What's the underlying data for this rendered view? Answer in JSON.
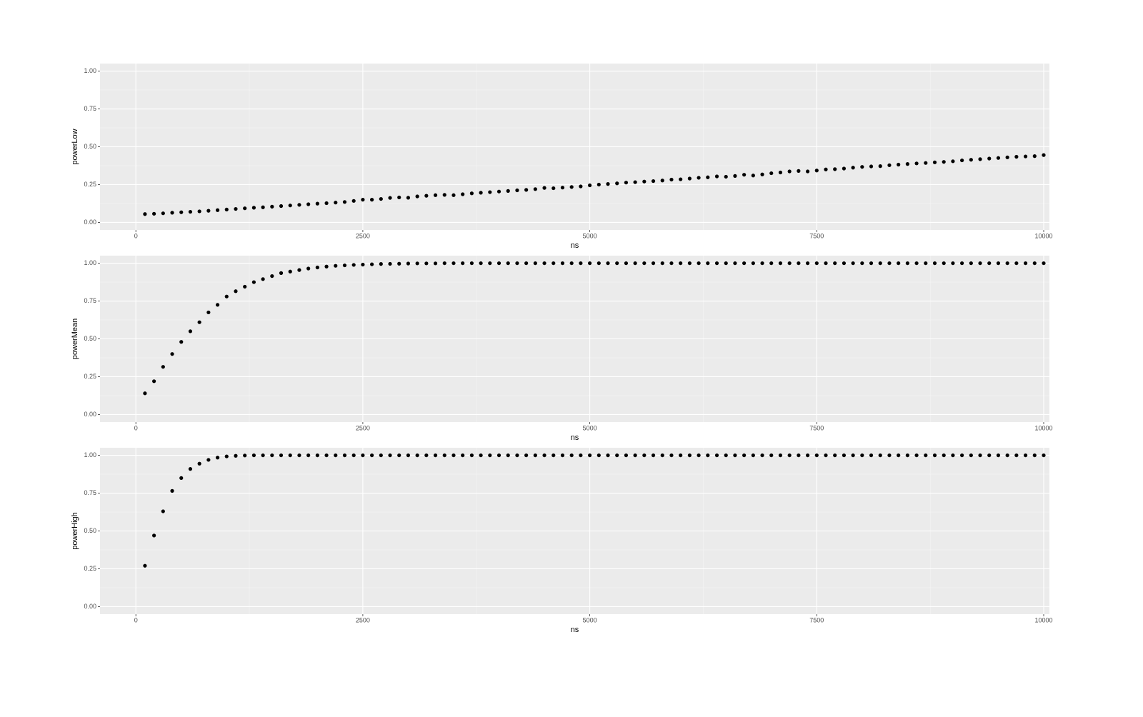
{
  "chart_data": [
    {
      "type": "scatter",
      "x_label": "ns",
      "y_label": "powerLow",
      "x": [
        100,
        200,
        300,
        400,
        500,
        600,
        700,
        800,
        900,
        1000,
        1100,
        1200,
        1300,
        1400,
        1500,
        1600,
        1700,
        1800,
        1900,
        2000,
        2100,
        2200,
        2300,
        2400,
        2500,
        2600,
        2700,
        2800,
        2900,
        3000,
        3100,
        3200,
        3300,
        3400,
        3500,
        3600,
        3700,
        3800,
        3900,
        4000,
        4100,
        4200,
        4300,
        4400,
        4500,
        4600,
        4700,
        4800,
        4900,
        5000,
        5100,
        5200,
        5300,
        5400,
        5500,
        5600,
        5700,
        5800,
        5900,
        6000,
        6100,
        6200,
        6300,
        6400,
        6500,
        6600,
        6700,
        6800,
        6900,
        7000,
        7100,
        7200,
        7300,
        7400,
        7500,
        7600,
        7700,
        7800,
        7900,
        8000,
        8100,
        8200,
        8300,
        8400,
        8500,
        8600,
        8700,
        8800,
        8900,
        9000,
        9100,
        9200,
        9300,
        9400,
        9500,
        9600,
        9700,
        9800,
        9900,
        10000
      ],
      "values": [
        0.055,
        0.057,
        0.06,
        0.064,
        0.067,
        0.07,
        0.073,
        0.077,
        0.081,
        0.085,
        0.089,
        0.093,
        0.097,
        0.1,
        0.104,
        0.108,
        0.112,
        0.116,
        0.12,
        0.124,
        0.127,
        0.131,
        0.135,
        0.142,
        0.15,
        0.15,
        0.155,
        0.162,
        0.165,
        0.163,
        0.172,
        0.176,
        0.18,
        0.182,
        0.18,
        0.186,
        0.192,
        0.196,
        0.2,
        0.204,
        0.208,
        0.212,
        0.215,
        0.22,
        0.228,
        0.226,
        0.23,
        0.234,
        0.238,
        0.245,
        0.25,
        0.254,
        0.258,
        0.263,
        0.266,
        0.27,
        0.273,
        0.277,
        0.283,
        0.285,
        0.29,
        0.295,
        0.298,
        0.304,
        0.302,
        0.307,
        0.315,
        0.31,
        0.317,
        0.325,
        0.33,
        0.337,
        0.34,
        0.337,
        0.343,
        0.35,
        0.352,
        0.356,
        0.362,
        0.367,
        0.37,
        0.372,
        0.378,
        0.382,
        0.386,
        0.39,
        0.393,
        0.397,
        0.4,
        0.404,
        0.41,
        0.414,
        0.418,
        0.422,
        0.426,
        0.43,
        0.434,
        0.436,
        0.438,
        0.445
      ],
      "color": "#000000",
      "xlim": [
        -395,
        10063
      ],
      "ylim": [
        -0.05,
        1.05
      ],
      "xticks": [
        0,
        2500,
        5000,
        7500,
        10000
      ],
      "yticks": [
        {
          "value": 0,
          "label": "0.00"
        },
        0.25,
        {
          "value": 0.5,
          "label": "0.50"
        },
        0.75,
        {
          "value": 1,
          "label": "1.00"
        }
      ],
      "grid": true
    },
    {
      "type": "scatter",
      "x_label": "ns",
      "y_label": "powerMean",
      "x": [
        100,
        200,
        300,
        400,
        500,
        600,
        700,
        800,
        900,
        1000,
        1100,
        1200,
        1300,
        1400,
        1500,
        1600,
        1700,
        1800,
        1900,
        2000,
        2100,
        2200,
        2300,
        2400,
        2500,
        2600,
        2700,
        2800,
        2900,
        3000,
        3100,
        3200,
        3300,
        3400,
        3500,
        3600,
        3700,
        3800,
        3900,
        4000,
        4100,
        4200,
        4300,
        4400,
        4500,
        4600,
        4700,
        4800,
        4900,
        5000,
        5100,
        5200,
        5300,
        5400,
        5500,
        5600,
        5700,
        5800,
        5900,
        6000,
        6100,
        6200,
        6300,
        6400,
        6500,
        6600,
        6700,
        6800,
        6900,
        7000,
        7100,
        7200,
        7300,
        7400,
        7500,
        7600,
        7700,
        7800,
        7900,
        8000,
        8100,
        8200,
        8300,
        8400,
        8500,
        8600,
        8700,
        8800,
        8900,
        9000,
        9100,
        9200,
        9300,
        9400,
        9500,
        9600,
        9700,
        9800,
        9900,
        10000
      ],
      "values": [
        0.14,
        0.22,
        0.315,
        0.4,
        0.48,
        0.55,
        0.61,
        0.675,
        0.725,
        0.78,
        0.815,
        0.845,
        0.875,
        0.895,
        0.915,
        0.935,
        0.945,
        0.955,
        0.965,
        0.972,
        0.978,
        0.983,
        0.986,
        0.989,
        0.991,
        0.993,
        0.995,
        0.996,
        0.997,
        0.998,
        0.999,
        0.999,
        0.999,
        1,
        1,
        1,
        1,
        1,
        1,
        1,
        1,
        1,
        1,
        1,
        1,
        1,
        1,
        1,
        1,
        1,
        1,
        1,
        1,
        1,
        1,
        1,
        1,
        1,
        1,
        1,
        1,
        1,
        1,
        1,
        1,
        1,
        1,
        1,
        1,
        1,
        1,
        1,
        1,
        1,
        1,
        1,
        1,
        1,
        1,
        1,
        1,
        1,
        1,
        1,
        1,
        1,
        1,
        1,
        1,
        1,
        1,
        1,
        1,
        1,
        1,
        1,
        1,
        1,
        1,
        1
      ],
      "color": "#000000",
      "xlim": [
        -395,
        10063
      ],
      "ylim": [
        -0.05,
        1.05
      ],
      "xticks": [
        0,
        2500,
        5000,
        7500,
        10000
      ],
      "yticks": [
        {
          "value": 0,
          "label": "0.00"
        },
        0.25,
        {
          "value": 0.5,
          "label": "0.50"
        },
        0.75,
        {
          "value": 1,
          "label": "1.00"
        }
      ],
      "grid": true
    },
    {
      "type": "scatter",
      "x_label": "ns",
      "y_label": "powerHigh",
      "x": [
        100,
        200,
        300,
        400,
        500,
        600,
        700,
        800,
        900,
        1000,
        1100,
        1200,
        1300,
        1400,
        1500,
        1600,
        1700,
        1800,
        1900,
        2000,
        2100,
        2200,
        2300,
        2400,
        2500,
        2600,
        2700,
        2800,
        2900,
        3000,
        3100,
        3200,
        3300,
        3400,
        3500,
        3600,
        3700,
        3800,
        3900,
        4000,
        4100,
        4200,
        4300,
        4400,
        4500,
        4600,
        4700,
        4800,
        4900,
        5000,
        5100,
        5200,
        5300,
        5400,
        5500,
        5600,
        5700,
        5800,
        5900,
        6000,
        6100,
        6200,
        6300,
        6400,
        6500,
        6600,
        6700,
        6800,
        6900,
        7000,
        7100,
        7200,
        7300,
        7400,
        7500,
        7600,
        7700,
        7800,
        7900,
        8000,
        8100,
        8200,
        8300,
        8400,
        8500,
        8600,
        8700,
        8800,
        8900,
        9000,
        9100,
        9200,
        9300,
        9400,
        9500,
        9600,
        9700,
        9800,
        9900,
        10000
      ],
      "values": [
        0.27,
        0.47,
        0.63,
        0.765,
        0.85,
        0.91,
        0.945,
        0.97,
        0.985,
        0.993,
        0.997,
        0.999,
        1,
        1,
        1,
        1,
        1,
        1,
        1,
        1,
        1,
        1,
        1,
        1,
        1,
        1,
        1,
        1,
        1,
        1,
        1,
        1,
        1,
        1,
        1,
        1,
        1,
        1,
        1,
        1,
        1,
        1,
        1,
        1,
        1,
        1,
        1,
        1,
        1,
        1,
        1,
        1,
        1,
        1,
        1,
        1,
        1,
        1,
        1,
        1,
        1,
        1,
        1,
        1,
        1,
        1,
        1,
        1,
        1,
        1,
        1,
        1,
        1,
        1,
        1,
        1,
        1,
        1,
        1,
        1,
        1,
        1,
        1,
        1,
        1,
        1,
        1,
        1,
        1,
        1,
        1,
        1,
        1,
        1,
        1,
        1,
        1,
        1,
        1,
        1
      ],
      "color": "#000000",
      "xlim": [
        -395,
        10063
      ],
      "ylim": [
        -0.05,
        1.05
      ],
      "xticks": [
        0,
        2500,
        5000,
        7500,
        10000
      ],
      "yticks": [
        {
          "value": 0,
          "label": "0.00"
        },
        0.25,
        {
          "value": 0.5,
          "label": "0.50"
        },
        0.75,
        {
          "value": 1,
          "label": "1.00"
        }
      ],
      "grid": true
    }
  ]
}
